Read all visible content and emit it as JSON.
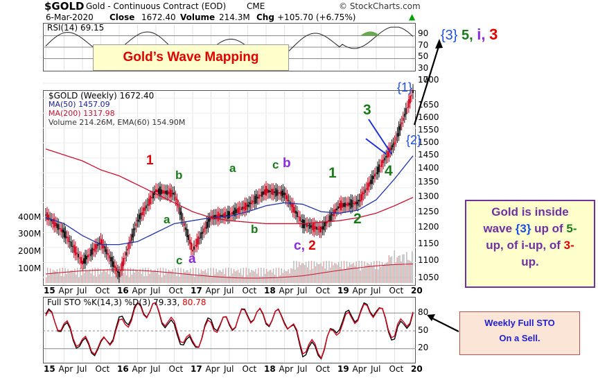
{
  "header": {
    "symbol": "$GOLD",
    "description": "Gold - Continuous Contract (EOD)",
    "exchange": "CME",
    "watermark": "© StockCharts.com",
    "date": "6-Mar-2020",
    "close_label": "Close",
    "close_value": "1672.40",
    "volume_label": "Volume",
    "volume_value": "214.3M",
    "chg_label": "Chg",
    "chg_value": "+105.70 (+6.75%)",
    "chg_arrow": "▲"
  },
  "title_box": {
    "text": "Gold’s Wave Mapping"
  },
  "rsi": {
    "label": "RSI(14) 69.15",
    "ticks": [
      "90",
      "70",
      "50",
      "30",
      "10"
    ]
  },
  "price_panel": {
    "legend_symbol": "$GOLD (Weekly) 1672.40",
    "legend_ma50": "MA(50) 1457.09",
    "legend_ma200": "MA(200) 1317.98",
    "legend_volume": "Volume 214.26M, EMA(60) 154.90M",
    "price_ticks": [
      "1700",
      "1650",
      "1600",
      "1550",
      "1500",
      "1450",
      "1400",
      "1350",
      "1300",
      "1250",
      "1200",
      "1150",
      "1100",
      "1050"
    ],
    "volume_ticks": [
      "400M",
      "300M",
      "200M",
      "100M"
    ]
  },
  "sto": {
    "label": "Full STO %K(14,3) %D(3) 79.33, 80.78",
    "label_k": "Full STO %K(14,3) %D(3) 79.33,",
    "label_d": "80.78",
    "ticks": [
      "80",
      "50",
      "20"
    ]
  },
  "x_axis": {
    "labels": [
      "15",
      "Apr",
      "Jul",
      "Oct",
      "16",
      "Apr",
      "Jul",
      "Oct",
      "17",
      "Apr",
      "Jul",
      "Oct",
      "18",
      "Apr",
      "Jul",
      "Oct",
      "19",
      "Apr",
      "Jul",
      "Oct",
      "20"
    ]
  },
  "wave_labels": {
    "w1": "1",
    "b1": "b",
    "a1": "a",
    "c1": "c",
    "a2": "a",
    "a3": "a",
    "c2": "c",
    "b2": "b",
    "b3": "b",
    "c3": "c, 2",
    "g1": "1",
    "g2": "2",
    "g3": "3",
    "g4": "4",
    "b_1": "{1}",
    "b_2": "{2}"
  },
  "target": {
    "p1": "{3}",
    "p2": "5,",
    "p3": "i,",
    "p4": "3"
  },
  "info_box": {
    "line1": "Gold is inside",
    "line2a": "wave ",
    "line2b": "{3}",
    "line2c": " up of ",
    "line2d": "5-",
    "line3a": "up, of i-up, of ",
    "line3b": "3-",
    "line4": "up."
  },
  "sto_box": {
    "line1": "Weekly Full STO",
    "line2": "On a Sell."
  },
  "chart_data": [
    {
      "type": "line",
      "title": "Full STO %K(14,3) %D(3) 79.33, 80.78",
      "x": [
        "15",
        "Apr",
        "Jul",
        "Oct",
        "16",
        "Apr",
        "Jul",
        "Oct",
        "17",
        "Apr",
        "Jul",
        "Oct",
        "18",
        "Apr",
        "Jul",
        "Oct",
        "19",
        "Apr",
        "Jul",
        "Oct",
        "20"
      ],
      "series": [
        {
          "name": "%K",
          "values": [
            78,
            55,
            25,
            20,
            60,
            88,
            85,
            50,
            22,
            65,
            60,
            80,
            70,
            75,
            20,
            15,
            65,
            80,
            90,
            40,
            79
          ]
        },
        {
          "name": "%D",
          "values": [
            75,
            58,
            28,
            22,
            55,
            85,
            86,
            55,
            25,
            60,
            62,
            78,
            72,
            73,
            25,
            18,
            60,
            78,
            88,
            45,
            81
          ]
        }
      ],
      "ylim": [
        0,
        100
      ]
    },
    {
      "type": "line",
      "title": "$GOLD (Weekly) 1672.40",
      "x": [
        "15",
        "Apr",
        "Jul",
        "Oct",
        "16",
        "Apr",
        "Jul",
        "Oct",
        "17",
        "Apr",
        "Jul",
        "Oct",
        "18",
        "Apr",
        "Jul",
        "Oct",
        "19",
        "Apr",
        "Jul",
        "Oct",
        "20"
      ],
      "series": [
        {
          "name": "$GOLD",
          "values": [
            1260,
            1200,
            1100,
            1170,
            1060,
            1240,
            1340,
            1330,
            1140,
            1250,
            1260,
            1290,
            1340,
            1330,
            1230,
            1210,
            1290,
            1300,
            1400,
            1500,
            1672
          ]
        },
        {
          "name": "MA(50)",
          "values": [
            1250,
            1230,
            1190,
            1160,
            1160,
            1170,
            1200,
            1230,
            1240,
            1250,
            1255,
            1270,
            1290,
            1300,
            1295,
            1270,
            1265,
            1275,
            1310,
            1380,
            1457
          ]
        },
        {
          "name": "MA(200)",
          "values": [
            1480,
            1460,
            1440,
            1410,
            1390,
            1360,
            1330,
            1300,
            1270,
            1250,
            1240,
            1235,
            1230,
            1230,
            1230,
            1235,
            1240,
            1250,
            1265,
            1290,
            1318
          ]
        }
      ],
      "ylim": [
        1030,
        1720
      ]
    }
  ]
}
